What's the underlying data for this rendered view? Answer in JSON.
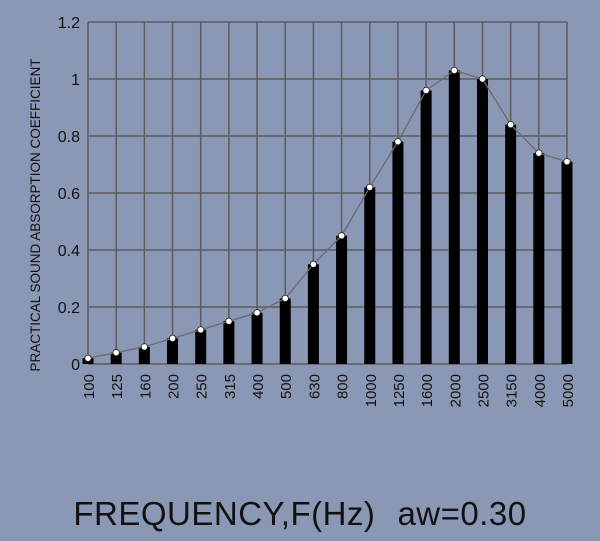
{
  "chart_data": {
    "type": "bar",
    "title": "",
    "ylabel": "PRACTICAL SOUND ABSORPTION COEFFICIENT",
    "xlabel": "FREQUENCY,F(Hz)",
    "annotation": "aw=0.30",
    "categories": [
      "100",
      "125",
      "160",
      "200",
      "250",
      "315",
      "400",
      "500",
      "630",
      "800",
      "1000",
      "1250",
      "1600",
      "2000",
      "2500",
      "3150",
      "4000",
      "5000"
    ],
    "values": [
      0.02,
      0.04,
      0.06,
      0.09,
      0.12,
      0.15,
      0.18,
      0.23,
      0.35,
      0.45,
      0.62,
      0.78,
      0.96,
      1.03,
      1.0,
      0.84,
      0.74,
      0.71
    ],
    "ylim": [
      0,
      1.2
    ],
    "yticks": [
      "0",
      "0.2",
      "0.4",
      "0.6",
      "0.8",
      "1",
      "1.2"
    ],
    "grid": true,
    "has_line_overlay": true,
    "colors": {
      "background": "#8a98b5",
      "bars": "#000000",
      "grid": "#5c5c5c",
      "line": "#6b6b6b",
      "markers": "#ffffff"
    }
  }
}
